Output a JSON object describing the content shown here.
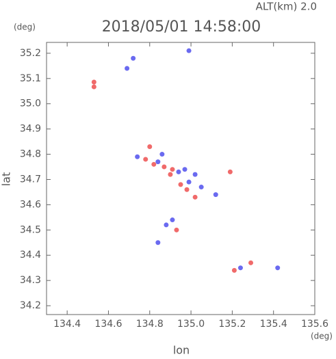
{
  "chart_data": {
    "type": "scatter",
    "title": "2018/05/01 14:58:00",
    "subtitle": "ALT(km) 2.0",
    "y_unit": "(deg)",
    "x_unit": "(deg)",
    "xlabel": "lon",
    "ylabel": "lat",
    "xlim": [
      134.3,
      135.6
    ],
    "ylim": [
      34.165,
      35.243
    ],
    "xticks": [
      134.4,
      134.6,
      134.8,
      {
        "value": 135.0,
        "label": "135.0"
      },
      135.2,
      135.4,
      135.6
    ],
    "yticks": [
      34.2,
      34.3,
      34.4,
      34.5,
      34.6,
      34.7,
      34.8,
      34.9,
      {
        "value": 35.0,
        "label": "35.0"
      },
      35.1,
      35.2
    ],
    "series": [
      {
        "color": "#f06a6a",
        "x": [
          134.53,
          134.53,
          134.8,
          134.82,
          134.87,
          134.95,
          135.02,
          134.9,
          135.19,
          134.93,
          135.21,
          135.29,
          134.78,
          134.91,
          134.98
        ],
        "y": [
          35.086,
          35.067,
          34.83,
          34.76,
          34.75,
          34.68,
          34.63,
          34.72,
          34.73,
          34.5,
          34.34,
          34.37,
          34.78,
          34.74,
          34.66
        ]
      },
      {
        "color": "#6a6af0",
        "x": [
          134.69,
          134.72,
          134.99,
          134.74,
          134.84,
          134.94,
          134.99,
          135.05,
          135.02,
          135.12,
          134.88,
          134.91,
          134.84,
          135.24,
          135.42,
          134.86,
          134.97
        ],
        "y": [
          35.14,
          35.18,
          35.21,
          34.79,
          34.77,
          34.73,
          34.69,
          34.67,
          34.72,
          34.64,
          34.52,
          34.54,
          34.45,
          34.35,
          34.35,
          34.8,
          34.74
        ]
      }
    ]
  }
}
